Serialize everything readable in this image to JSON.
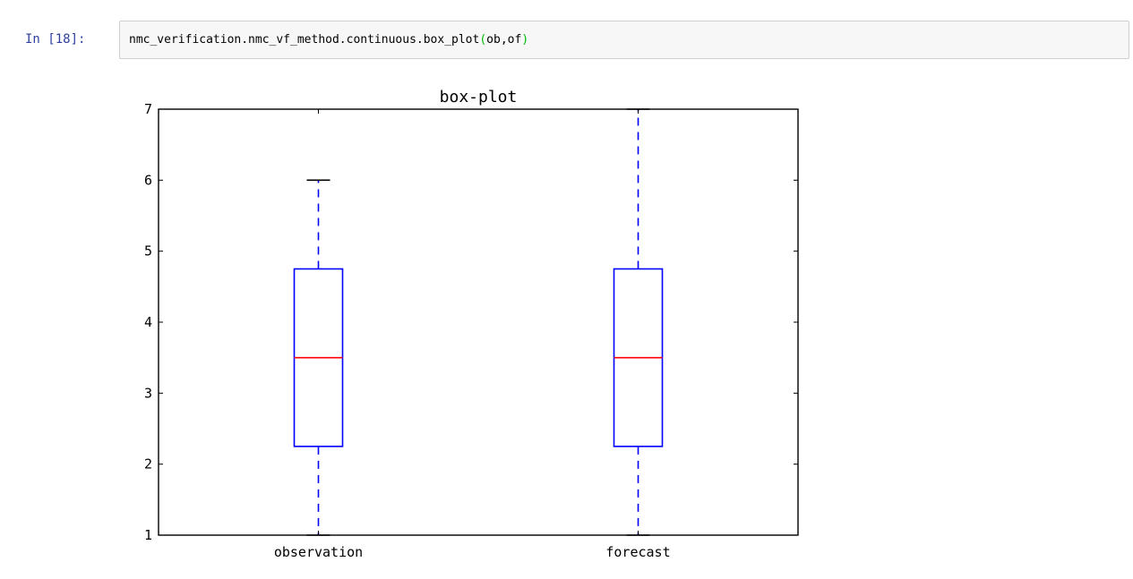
{
  "cell": {
    "prompt": "In  [18]:",
    "code_before": "nmc_verification.nmc_vf_method.continuous.box_plot",
    "code_open_paren": "(",
    "code_args": "ob,of",
    "code_close_paren": ")"
  },
  "colors": {
    "prompt": "#303f9f",
    "box": "#0000ff",
    "median": "#ff0000",
    "axes": "#000000",
    "paren": "#00bb00"
  },
  "chart_data": {
    "type": "box",
    "title": "box-plot",
    "xlabel": "",
    "ylabel": "",
    "categories": [
      "observation",
      "forecast"
    ],
    "ylim": [
      1,
      7
    ],
    "yticks": [
      "1",
      "2",
      "3",
      "4",
      "5",
      "6",
      "7"
    ],
    "grid": false,
    "series": [
      {
        "category": "observation",
        "whisker_low": 1,
        "q1": 2.25,
        "median": 3.5,
        "q3": 4.75,
        "whisker_high": 6
      },
      {
        "category": "forecast",
        "whisker_low": 1,
        "q1": 2.25,
        "median": 3.5,
        "q3": 4.75,
        "whisker_high": 7
      }
    ]
  }
}
